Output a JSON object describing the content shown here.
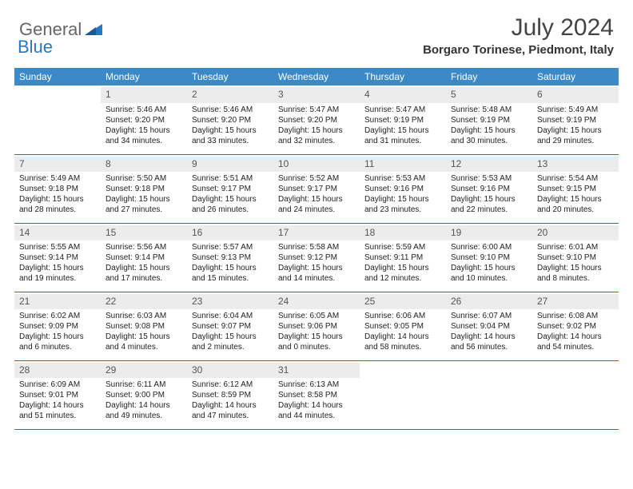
{
  "logo": {
    "general": "General",
    "blue": "Blue"
  },
  "title": "July 2024",
  "location": "Borgaro Torinese, Piedmont, Italy",
  "colors": {
    "header_bg": "#3b89c7",
    "header_text": "#ffffff",
    "daynum_bg": "#ececec",
    "daynum_text": "#555555",
    "cell_text": "#222222",
    "row_border": "#2a6fa8",
    "logo_blue": "#2a77bb",
    "logo_gray": "#666666"
  },
  "weekdays": [
    "Sunday",
    "Monday",
    "Tuesday",
    "Wednesday",
    "Thursday",
    "Friday",
    "Saturday"
  ],
  "layout": {
    "start_offset": 1,
    "days_in_month": 31,
    "columns": 7
  },
  "days": [
    {
      "n": 1,
      "sunrise": "5:46 AM",
      "sunset": "9:20 PM",
      "dl_h": 15,
      "dl_m": 34
    },
    {
      "n": 2,
      "sunrise": "5:46 AM",
      "sunset": "9:20 PM",
      "dl_h": 15,
      "dl_m": 33
    },
    {
      "n": 3,
      "sunrise": "5:47 AM",
      "sunset": "9:20 PM",
      "dl_h": 15,
      "dl_m": 32
    },
    {
      "n": 4,
      "sunrise": "5:47 AM",
      "sunset": "9:19 PM",
      "dl_h": 15,
      "dl_m": 31
    },
    {
      "n": 5,
      "sunrise": "5:48 AM",
      "sunset": "9:19 PM",
      "dl_h": 15,
      "dl_m": 30
    },
    {
      "n": 6,
      "sunrise": "5:49 AM",
      "sunset": "9:19 PM",
      "dl_h": 15,
      "dl_m": 29
    },
    {
      "n": 7,
      "sunrise": "5:49 AM",
      "sunset": "9:18 PM",
      "dl_h": 15,
      "dl_m": 28
    },
    {
      "n": 8,
      "sunrise": "5:50 AM",
      "sunset": "9:18 PM",
      "dl_h": 15,
      "dl_m": 27
    },
    {
      "n": 9,
      "sunrise": "5:51 AM",
      "sunset": "9:17 PM",
      "dl_h": 15,
      "dl_m": 26
    },
    {
      "n": 10,
      "sunrise": "5:52 AM",
      "sunset": "9:17 PM",
      "dl_h": 15,
      "dl_m": 24
    },
    {
      "n": 11,
      "sunrise": "5:53 AM",
      "sunset": "9:16 PM",
      "dl_h": 15,
      "dl_m": 23
    },
    {
      "n": 12,
      "sunrise": "5:53 AM",
      "sunset": "9:16 PM",
      "dl_h": 15,
      "dl_m": 22
    },
    {
      "n": 13,
      "sunrise": "5:54 AM",
      "sunset": "9:15 PM",
      "dl_h": 15,
      "dl_m": 20
    },
    {
      "n": 14,
      "sunrise": "5:55 AM",
      "sunset": "9:14 PM",
      "dl_h": 15,
      "dl_m": 19
    },
    {
      "n": 15,
      "sunrise": "5:56 AM",
      "sunset": "9:14 PM",
      "dl_h": 15,
      "dl_m": 17
    },
    {
      "n": 16,
      "sunrise": "5:57 AM",
      "sunset": "9:13 PM",
      "dl_h": 15,
      "dl_m": 15
    },
    {
      "n": 17,
      "sunrise": "5:58 AM",
      "sunset": "9:12 PM",
      "dl_h": 15,
      "dl_m": 14
    },
    {
      "n": 18,
      "sunrise": "5:59 AM",
      "sunset": "9:11 PM",
      "dl_h": 15,
      "dl_m": 12
    },
    {
      "n": 19,
      "sunrise": "6:00 AM",
      "sunset": "9:10 PM",
      "dl_h": 15,
      "dl_m": 10
    },
    {
      "n": 20,
      "sunrise": "6:01 AM",
      "sunset": "9:10 PM",
      "dl_h": 15,
      "dl_m": 8
    },
    {
      "n": 21,
      "sunrise": "6:02 AM",
      "sunset": "9:09 PM",
      "dl_h": 15,
      "dl_m": 6
    },
    {
      "n": 22,
      "sunrise": "6:03 AM",
      "sunset": "9:08 PM",
      "dl_h": 15,
      "dl_m": 4
    },
    {
      "n": 23,
      "sunrise": "6:04 AM",
      "sunset": "9:07 PM",
      "dl_h": 15,
      "dl_m": 2
    },
    {
      "n": 24,
      "sunrise": "6:05 AM",
      "sunset": "9:06 PM",
      "dl_h": 15,
      "dl_m": 0
    },
    {
      "n": 25,
      "sunrise": "6:06 AM",
      "sunset": "9:05 PM",
      "dl_h": 14,
      "dl_m": 58
    },
    {
      "n": 26,
      "sunrise": "6:07 AM",
      "sunset": "9:04 PM",
      "dl_h": 14,
      "dl_m": 56
    },
    {
      "n": 27,
      "sunrise": "6:08 AM",
      "sunset": "9:02 PM",
      "dl_h": 14,
      "dl_m": 54
    },
    {
      "n": 28,
      "sunrise": "6:09 AM",
      "sunset": "9:01 PM",
      "dl_h": 14,
      "dl_m": 51
    },
    {
      "n": 29,
      "sunrise": "6:11 AM",
      "sunset": "9:00 PM",
      "dl_h": 14,
      "dl_m": 49
    },
    {
      "n": 30,
      "sunrise": "6:12 AM",
      "sunset": "8:59 PM",
      "dl_h": 14,
      "dl_m": 47
    },
    {
      "n": 31,
      "sunrise": "6:13 AM",
      "sunset": "8:58 PM",
      "dl_h": 14,
      "dl_m": 44
    }
  ],
  "labels": {
    "sunrise": "Sunrise:",
    "sunset": "Sunset:",
    "daylight": "Daylight:",
    "hours": "hours",
    "and": "and",
    "minutes": "minutes."
  }
}
